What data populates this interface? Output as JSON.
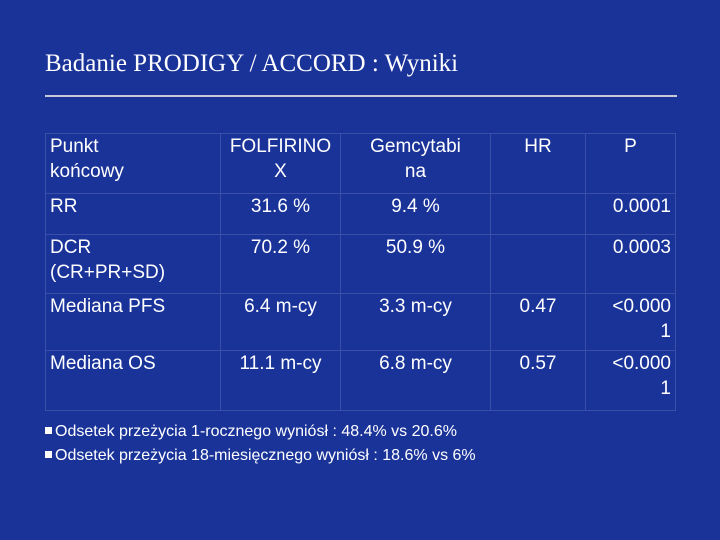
{
  "title": "Badanie PRODIGY / ACCORD : Wyniki",
  "table": {
    "headers": [
      "Punkt końcowy",
      "FOLFIRINOX",
      "Gemcytabina",
      "HR",
      "P"
    ],
    "headers_display": {
      "endpoint_l1": "Punkt",
      "endpoint_l2": "końcowy",
      "folfirinox_l1": "FOLFIRINO",
      "folfirinox_l2": "X",
      "gem_l1": "Gemcytabi",
      "gem_l2": "na",
      "hr": "HR",
      "p": "P"
    },
    "rows": [
      {
        "endpoint": "RR",
        "folfirinox": "31.6 %",
        "gemcitabine": "9.4 %",
        "hr": "",
        "p": "0.0001"
      },
      {
        "endpoint_l1": "DCR",
        "endpoint_l2": "(CR+PR+SD)",
        "folfirinox": "70.2 %",
        "gemcitabine": "50.9 %",
        "hr": "",
        "p": "0.0003"
      },
      {
        "endpoint": "Mediana PFS",
        "folfirinox": "6.4 m-cy",
        "gemcitabine": "3.3 m-cy",
        "hr": "0.47",
        "p_l1": "<0.000",
        "p_l2": "1"
      },
      {
        "endpoint": "Mediana OS",
        "folfirinox": "11.1 m-cy",
        "gemcitabine": "6.8 m-cy",
        "hr": "0.57",
        "p_l1": "<0.000",
        "p_l2": "1"
      }
    ]
  },
  "bullets": [
    "Odsetek przeżycia 1-rocznego wyniósł : 48.4% vs 20.6%",
    "Odsetek przeżycia 18-miesięcznego wyniósł : 18.6% vs 6%"
  ],
  "colors": {
    "background": "#1a3399",
    "text": "#ffffff"
  }
}
